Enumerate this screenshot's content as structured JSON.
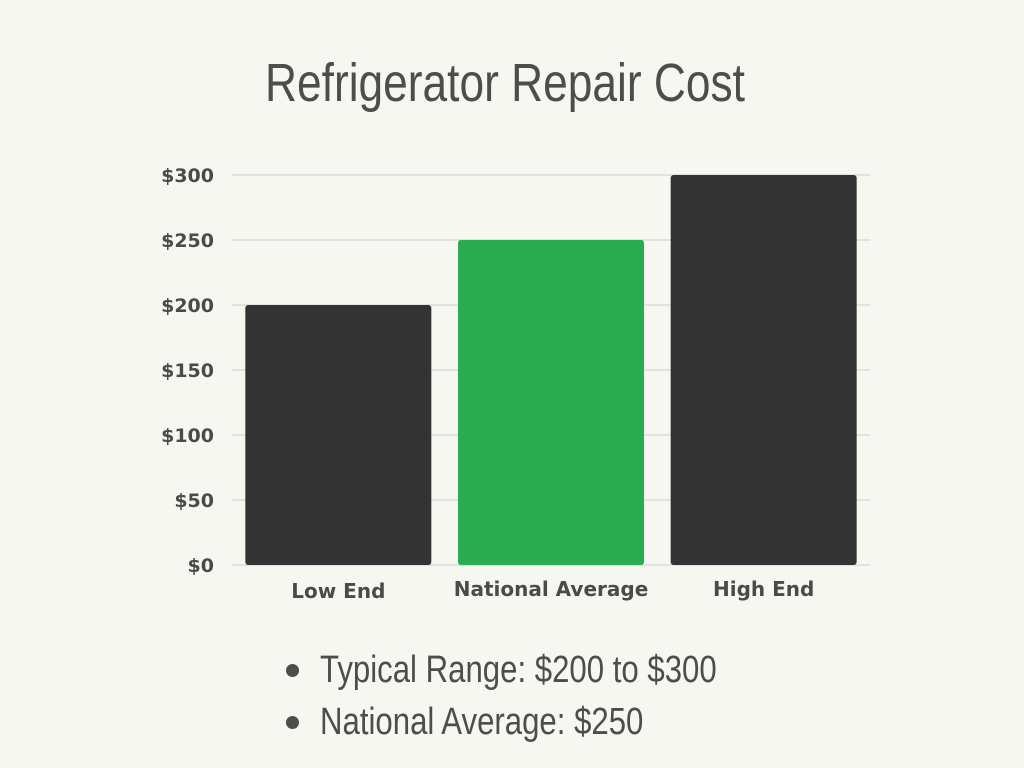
{
  "chart_data": {
    "type": "bar",
    "title": "Refrigerator Repair Cost",
    "categories": [
      "Low End",
      "National Average",
      "High End"
    ],
    "values": [
      200,
      250,
      300
    ],
    "bar_colors": [
      "#333333",
      "#2aad52",
      "#333333"
    ],
    "ylim": [
      0,
      300
    ],
    "yticks": [
      0,
      50,
      100,
      150,
      200,
      250,
      300
    ],
    "ytick_labels": [
      "$0",
      "$50",
      "$100",
      "$150",
      "$200",
      "$250",
      "$300"
    ],
    "grid": true,
    "xlabel": "",
    "ylabel": ""
  },
  "bullets": [
    "Typical Range: $200 to $300",
    "National Average: $250"
  ],
  "colors": {
    "background": "#f7f7f2",
    "text": "#4d4d4d",
    "gridline": "#cccccc",
    "accent": "#2aad52",
    "bar_dark": "#333333"
  }
}
